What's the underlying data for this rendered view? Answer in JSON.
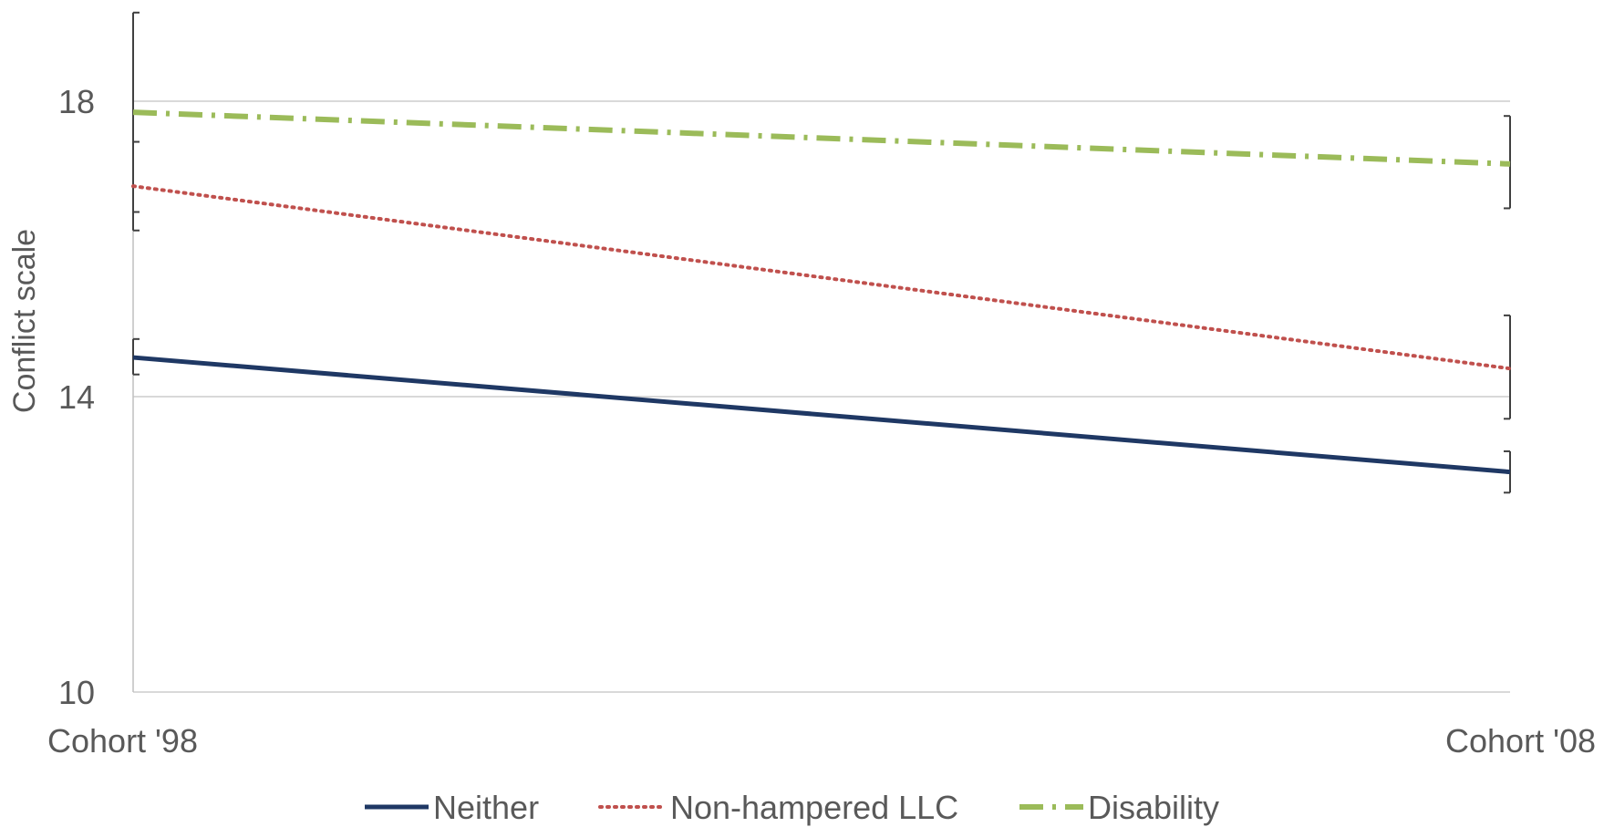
{
  "chart_data": {
    "type": "line",
    "title": "",
    "xlabel": "",
    "ylabel": "Conflict scale",
    "categories": [
      "Cohort '98",
      "Cohort '08"
    ],
    "ylim": [
      10,
      19.2
    ],
    "yticks": [
      10,
      14,
      18
    ],
    "grid": true,
    "legend_position": "bottom",
    "series": [
      {
        "name": "Neither",
        "values": [
          14.53,
          12.98
        ],
        "error_low": [
          14.3,
          12.7
        ],
        "error_high": [
          14.78,
          13.26
        ],
        "color": "#1f3864",
        "dash": "solid"
      },
      {
        "name": "Non-hampered LLC",
        "values": [
          16.85,
          14.38
        ],
        "error_low": [
          16.25,
          13.7
        ],
        "error_high": [
          17.45,
          15.1
        ],
        "color": "#c0504d",
        "dash": "dotted"
      },
      {
        "name": "Disability",
        "values": [
          17.85,
          17.15
        ],
        "error_low": [
          16.5,
          16.55
        ],
        "error_high": [
          19.2,
          17.8
        ],
        "color": "#9bbb59",
        "dash": "dashdot"
      }
    ]
  }
}
